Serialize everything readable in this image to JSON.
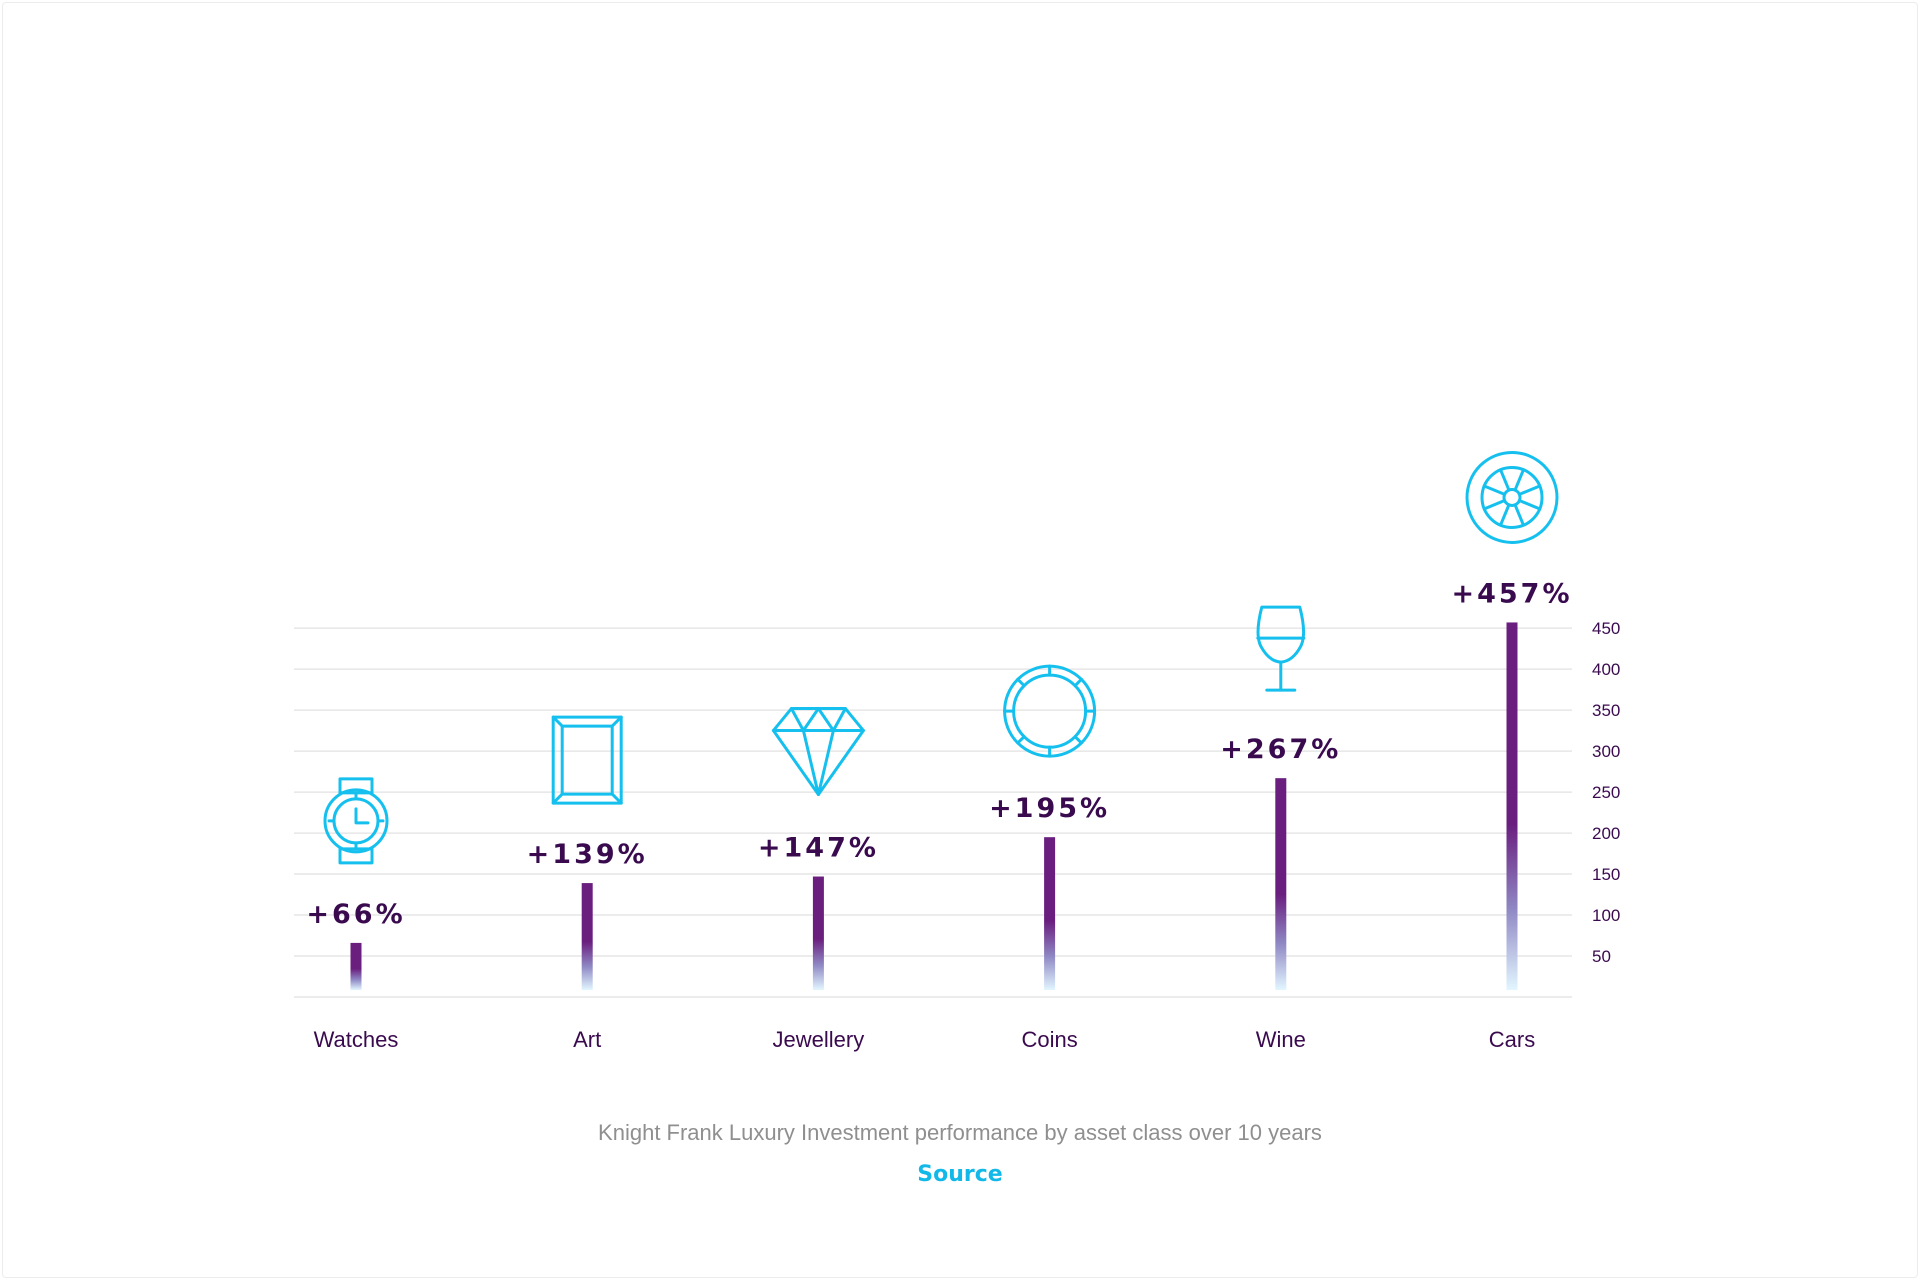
{
  "caption": "Knight Frank Luxury Investment performance by asset class over 10 years",
  "source_label": "Source",
  "colors": {
    "bar_top": "#6a1f7f",
    "bar_bottom": "#e2f6ff",
    "icon": "#16c0ee",
    "value_label": "#3a0a4f",
    "category_label": "#3a0a4f",
    "tick_label": "#3a0a4f",
    "grid": "#e6e6e6",
    "link": "#12b8e8"
  },
  "chart_data": {
    "type": "bar",
    "categories": [
      "Watches",
      "Art",
      "Jewellery",
      "Coins",
      "Wine",
      "Cars"
    ],
    "values": [
      66,
      139,
      147,
      195,
      267,
      457
    ],
    "value_labels": [
      "+66%",
      "+139%",
      "+147%",
      "+195%",
      "+267%",
      "+457%"
    ],
    "icons": [
      "watch-icon",
      "picture-frame-icon",
      "diamond-icon",
      "coin-icon",
      "wine-glass-icon",
      "wheel-icon"
    ],
    "yticks": [
      50,
      100,
      150,
      200,
      250,
      300,
      350,
      400,
      450
    ],
    "ylim": [
      0,
      450
    ],
    "yaxis_position": "right",
    "grid": true,
    "title": "",
    "xlabel": "",
    "ylabel": ""
  }
}
